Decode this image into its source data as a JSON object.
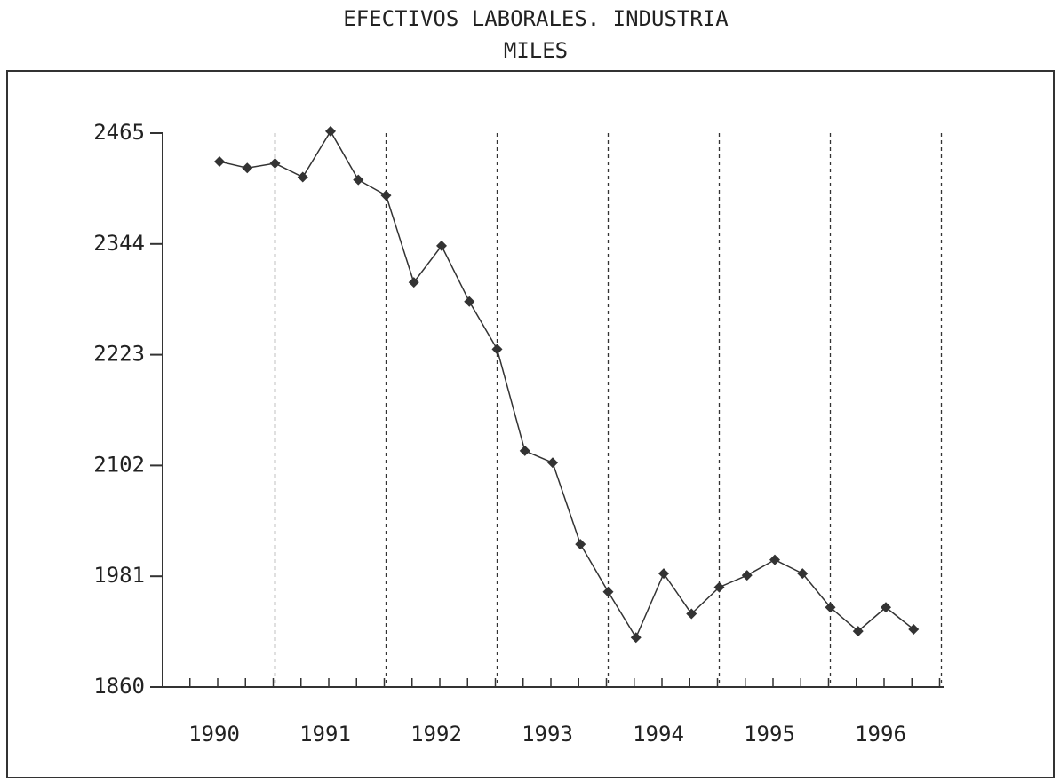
{
  "chart_data": {
    "type": "line",
    "title": "EFECTIVOS LABORALES. INDUSTRIA",
    "subtitle": "MILES",
    "categories": [
      "1990",
      null,
      null,
      null,
      "1991",
      null,
      null,
      null,
      "1992",
      null,
      null,
      null,
      "1993",
      null,
      null,
      null,
      "1994",
      null,
      null,
      null,
      "1995",
      null,
      null,
      null,
      "1996",
      null
    ],
    "series": [
      {
        "color": "#333333",
        "values": [
          2434,
          2427,
          2432,
          2417,
          2467,
          2414,
          2397,
          2302,
          2342,
          2281,
          2229,
          2118,
          2105,
          2016,
          1964,
          1914,
          1984,
          1940,
          1969,
          1982,
          1999,
          1984,
          1947,
          1921,
          1947,
          1923
        ]
      }
    ],
    "ylim": [
      1860,
      2465
    ],
    "yticks": [
      1860,
      1981,
      2102,
      2223,
      2344,
      2465
    ]
  }
}
